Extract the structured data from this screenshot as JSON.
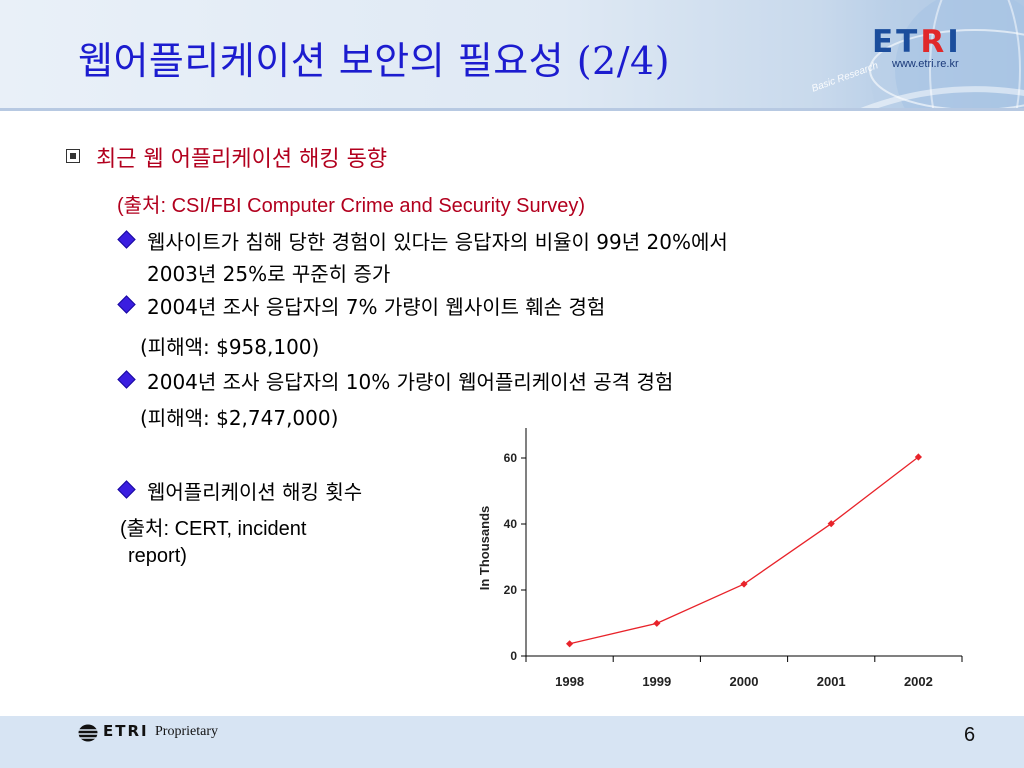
{
  "header": {
    "title": "웹어플리케이션 보안의 필요성 (2/4)",
    "logo_prefix": "ET",
    "logo_r": "R",
    "logo_suffix": "I",
    "url": "www.etri.re.kr",
    "slogan": "Basic Research",
    "colors": {
      "title": "#1c1ccf",
      "logo_blue": "#1b4d9c",
      "logo_red": "#e0282a"
    }
  },
  "content": {
    "heading": "최근 웹 어플리케이션 해킹 동향",
    "source": "(출처: CSI/FBI Computer Crime and Security Survey)",
    "items": [
      {
        "line1": "웹사이트가 침해 당한 경험이 있다는 응답자의 비율이 99년 20%에서",
        "line2": "2003년 25%로 꾸준히 증가"
      },
      {
        "line1": "2004년 조사 응답자의 7% 가량이 웹사이트 훼손 경험",
        "line2": "(피해액: $958,100)"
      },
      {
        "line1": "2004년 조사 응답자의 10% 가량이 웹어플리케이션 공격 경험",
        "line2": "(피해액: $2,747,000)"
      },
      {
        "line1": "웹어플리케이션 해킹 횟수",
        "line2": "(출처: CERT, incident",
        "line3": "report)"
      }
    ],
    "colors": {
      "heading": "#b2001e",
      "bullet": "#3a1ee0"
    }
  },
  "chart_data": {
    "type": "line",
    "x": [
      "1998",
      "1999",
      "2000",
      "2001",
      "2002"
    ],
    "series": [
      {
        "values": [
          3.7,
          9.9,
          21.8,
          40.1,
          60.3
        ]
      }
    ],
    "ylabel": "In Thousands",
    "ylim": [
      0,
      60
    ],
    "yticks": [
      "0",
      "20",
      "40",
      "60"
    ],
    "line_color": "#e8232a",
    "grid": false
  },
  "footer": {
    "logo": "ETRI",
    "proprietary": "Proprietary",
    "page": "6"
  }
}
